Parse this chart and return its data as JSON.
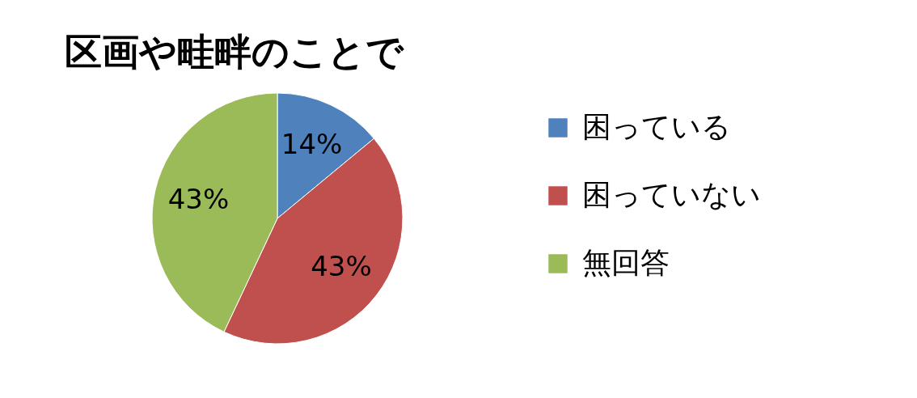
{
  "chart_data": {
    "type": "pie",
    "title": "区画や畦畔のことで",
    "categories": [
      "困っている",
      "困っていない",
      "無回答"
    ],
    "values": [
      14,
      43,
      43
    ],
    "colors": [
      "#4f81bd",
      "#c0504d",
      "#9bbb59"
    ],
    "value_labels": [
      "14%",
      "43%",
      "43%"
    ],
    "legend": "right"
  }
}
